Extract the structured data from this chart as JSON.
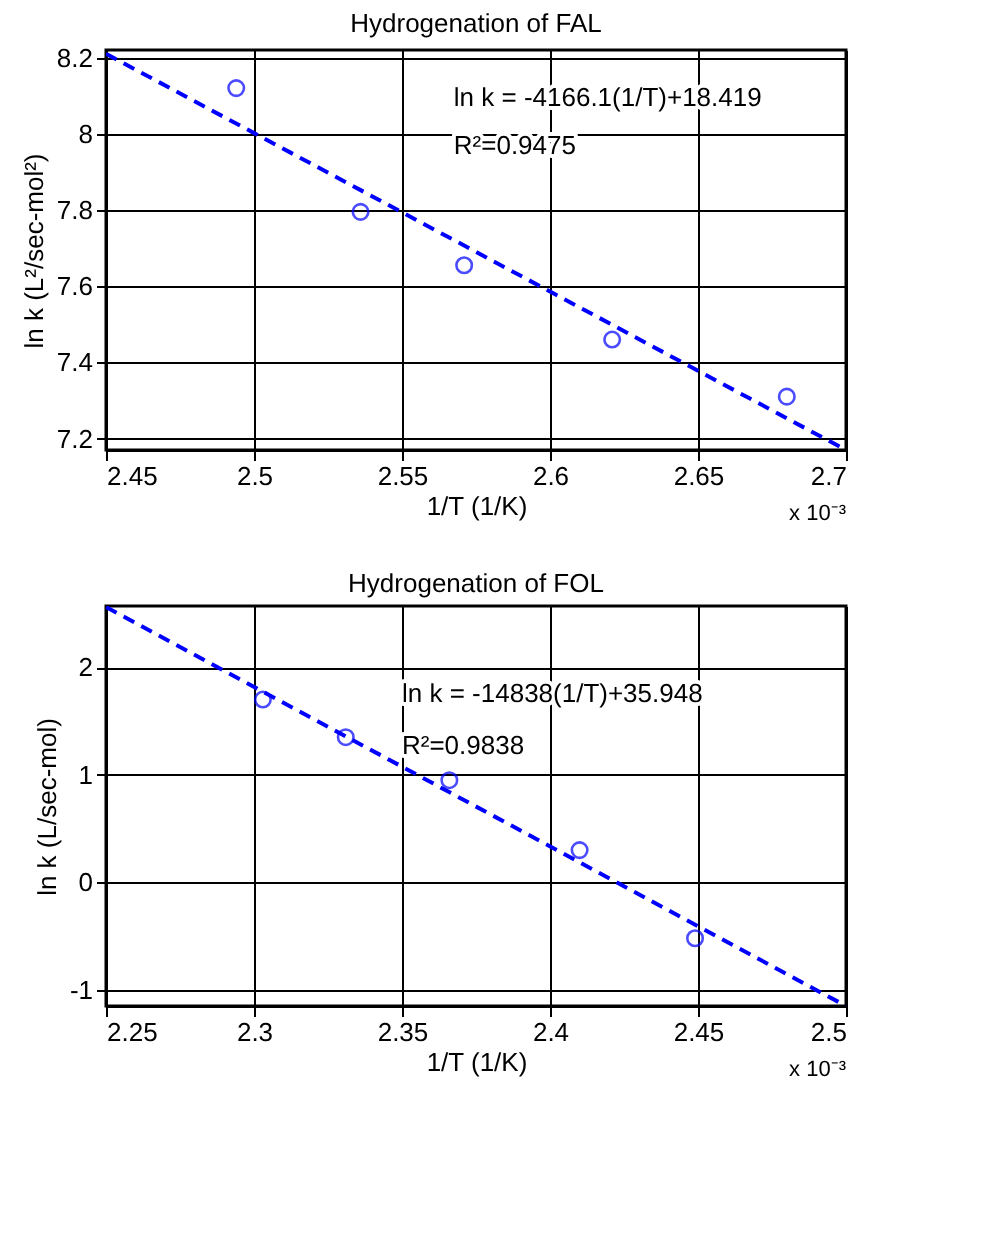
{
  "chart_data": [
    {
      "type": "scatter",
      "title": "Hydrogenation of FAL",
      "xlabel": "1/T (1/K)",
      "ylabel": "ln k (L²/sec-mol²)",
      "xlim": [
        2.45,
        2.7
      ],
      "xticks": [
        2.45,
        2.5,
        2.55,
        2.6,
        2.65,
        2.7
      ],
      "ylim": [
        7.17,
        8.22
      ],
      "yticks": [
        7.2,
        7.4,
        7.6,
        7.8,
        8,
        8.2
      ],
      "grid": true,
      "series": [
        {
          "type": "scatter",
          "color": "#0000ff",
          "marker": "circle",
          "x": [
            2.494,
            2.536,
            2.571,
            2.621,
            2.68
          ],
          "values": [
            8.12,
            7.795,
            7.655,
            7.46,
            7.31
          ]
        },
        {
          "type": "line",
          "color": "#0000ff",
          "line_style": "dashed",
          "x": [
            2.45,
            2.7
          ],
          "values": [
            8.21,
            7.17
          ]
        }
      ],
      "annotations": [
        "ln k = -4166.1(1/T)+18.419",
        "R²=0.9475",
        "x 10⁻³"
      ]
    },
    {
      "type": "scatter",
      "title": "Hydrogenation of FOL",
      "xlabel": "1/T (1/K)",
      "ylabel": "ln k (L/sec-mol)",
      "xlim": [
        2.25,
        2.5
      ],
      "xticks": [
        2.25,
        2.3,
        2.35,
        2.4,
        2.45,
        2.5
      ],
      "ylim": [
        -1.15,
        2.57
      ],
      "yticks": [
        -1,
        0,
        1,
        2
      ],
      "grid": true,
      "series": [
        {
          "type": "scatter",
          "color": "#0000ff",
          "marker": "circle",
          "x": [
            2.303,
            2.331,
            2.366,
            2.41,
            2.449
          ],
          "values": [
            1.7,
            1.35,
            0.95,
            0.3,
            -0.52
          ]
        },
        {
          "type": "line",
          "color": "#0000ff",
          "line_style": "dashed",
          "x": [
            2.25,
            2.5
          ],
          "values": [
            2.56,
            -1.15
          ]
        }
      ],
      "annotations": [
        "ln k = -14838(1/T)+35.948",
        "R²=0.9838",
        "x 10⁻³"
      ]
    }
  ]
}
